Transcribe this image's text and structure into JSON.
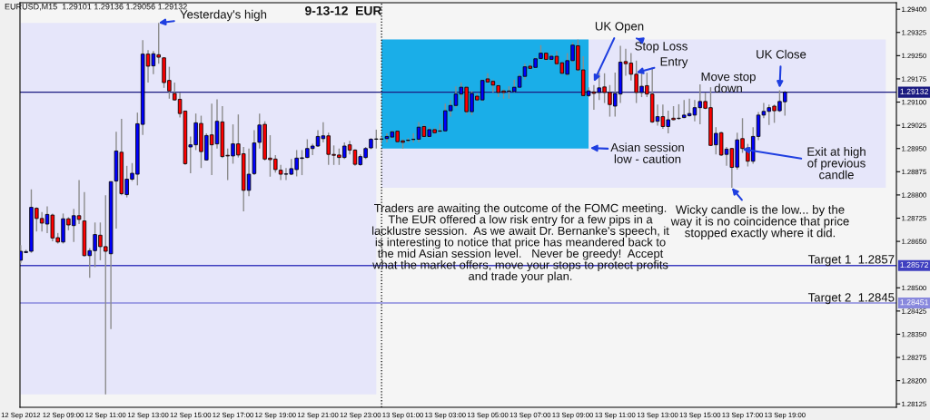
{
  "chart_data": {
    "type": "candlestick",
    "title": "9-13-12  EUR",
    "x": [
      "2012-09-12T07:00",
      "2012-09-12T07:15",
      "2012-09-12T07:30",
      "2012-09-12T07:45",
      "2012-09-12T08:00",
      "2012-09-12T08:15",
      "2012-09-12T08:30",
      "2012-09-12T08:45",
      "2012-09-12T09:00",
      "2012-09-12T09:15",
      "2012-09-12T09:30",
      "2012-09-12T09:45",
      "2012-09-12T10:00",
      "2012-09-12T10:15",
      "2012-09-12T10:30",
      "2012-09-12T10:45",
      "2012-09-12T11:00",
      "2012-09-12T11:15",
      "2012-09-12T11:30",
      "2012-09-12T11:45",
      "2012-09-12T12:00",
      "2012-09-12T12:15",
      "2012-09-12T12:30",
      "2012-09-12T12:45",
      "2012-09-12T13:00",
      "2012-09-12T13:15",
      "2012-09-12T13:30",
      "2012-09-12T13:45",
      "2012-09-12T14:00",
      "2012-09-12T14:15",
      "2012-09-12T14:30",
      "2012-09-12T14:45",
      "2012-09-12T15:00",
      "2012-09-12T15:15",
      "2012-09-12T15:30",
      "2012-09-12T15:45",
      "2012-09-12T16:00",
      "2012-09-12T16:15",
      "2012-09-12T16:30",
      "2012-09-12T16:45",
      "2012-09-12T17:00",
      "2012-09-12T17:15",
      "2012-09-12T17:30",
      "2012-09-12T17:45",
      "2012-09-12T18:00",
      "2012-09-12T18:15",
      "2012-09-12T18:30",
      "2012-09-12T18:45",
      "2012-09-12T19:00",
      "2012-09-12T19:15",
      "2012-09-12T19:30",
      "2012-09-12T19:45",
      "2012-09-12T20:00",
      "2012-09-12T20:15",
      "2012-09-12T20:30",
      "2012-09-12T20:45",
      "2012-09-12T21:00",
      "2012-09-12T21:15",
      "2012-09-12T21:30",
      "2012-09-12T21:45",
      "2012-09-12T22:00",
      "2012-09-12T22:15",
      "2012-09-12T22:30",
      "2012-09-12T22:45",
      "2012-09-12T23:00",
      "2012-09-12T23:15",
      "2012-09-12T23:30",
      "2012-09-12T23:45",
      "2012-09-13T00:00",
      "2012-09-13T00:15",
      "2012-09-13T00:30",
      "2012-09-13T00:45",
      "2012-09-13T01:00",
      "2012-09-13T01:15",
      "2012-09-13T01:30",
      "2012-09-13T01:45",
      "2012-09-13T02:00",
      "2012-09-13T02:15",
      "2012-09-13T02:30",
      "2012-09-13T02:45",
      "2012-09-13T03:00",
      "2012-09-13T03:15",
      "2012-09-13T03:30",
      "2012-09-13T03:45",
      "2012-09-13T04:00",
      "2012-09-13T04:15",
      "2012-09-13T04:30",
      "2012-09-13T04:45",
      "2012-09-13T05:00",
      "2012-09-13T05:15",
      "2012-09-13T05:30",
      "2012-09-13T05:45",
      "2012-09-13T06:00",
      "2012-09-13T06:15",
      "2012-09-13T06:30",
      "2012-09-13T06:45",
      "2012-09-13T07:00",
      "2012-09-13T07:15",
      "2012-09-13T07:30",
      "2012-09-13T07:45",
      "2012-09-13T08:00",
      "2012-09-13T08:15",
      "2012-09-13T08:30",
      "2012-09-13T08:45",
      "2012-09-13T09:00",
      "2012-09-13T09:15",
      "2012-09-13T09:30",
      "2012-09-13T09:45",
      "2012-09-13T10:00",
      "2012-09-13T10:15",
      "2012-09-13T10:30",
      "2012-09-13T10:45",
      "2012-09-13T11:00",
      "2012-09-13T11:15",
      "2012-09-13T11:30",
      "2012-09-13T11:45",
      "2012-09-13T12:00",
      "2012-09-13T12:15",
      "2012-09-13T12:30",
      "2012-09-13T12:45",
      "2012-09-13T13:00",
      "2012-09-13T13:15",
      "2012-09-13T13:30",
      "2012-09-13T13:45",
      "2012-09-13T14:00",
      "2012-09-13T14:15",
      "2012-09-13T14:30",
      "2012-09-13T14:45",
      "2012-09-13T15:00",
      "2012-09-13T15:15",
      "2012-09-13T15:30",
      "2012-09-13T15:45",
      "2012-09-13T16:00",
      "2012-09-13T16:15",
      "2012-09-13T16:30",
      "2012-09-13T16:45",
      "2012-09-13T17:00",
      "2012-09-13T17:15",
      "2012-09-13T17:30",
      "2012-09-13T17:45",
      "2012-09-13T18:00",
      "2012-09-13T18:15",
      "2012-09-13T18:30",
      "2012-09-13T18:45",
      "2012-09-13T19:00"
    ],
    "ohlc": [
      [
        1.28589,
        1.28638,
        1.28579,
        1.28618
      ],
      [
        1.28614,
        1.28623,
        1.28612,
        1.28617
      ],
      [
        1.28618,
        1.28818,
        1.28613,
        1.2876
      ],
      [
        1.28757,
        1.2876,
        1.28682,
        1.28724
      ],
      [
        1.28724,
        1.28745,
        1.28682,
        1.28709
      ],
      [
        1.28706,
        1.28763,
        1.28677,
        1.28737
      ],
      [
        1.28735,
        1.2874,
        1.2865,
        1.28661
      ],
      [
        1.28662,
        1.28677,
        1.28643,
        1.28648
      ],
      [
        1.28648,
        1.2874,
        1.28643,
        1.28723
      ],
      [
        1.28723,
        1.28728,
        1.28686,
        1.28703
      ],
      [
        1.28701,
        1.28755,
        1.28648,
        1.28733
      ],
      [
        1.28733,
        1.28848,
        1.28706,
        1.28721
      ],
      [
        1.28716,
        1.28809,
        1.28601,
        1.28604
      ],
      [
        1.28604,
        1.28628,
        1.28532,
        1.2862
      ],
      [
        1.2862,
        1.28711,
        1.28567,
        1.28672
      ],
      [
        1.2867,
        1.28711,
        1.28589,
        1.28633
      ],
      [
        1.28633,
        1.28799,
        1.28156,
        1.28618
      ],
      [
        1.2861,
        1.28843,
        1.28367,
        1.28843
      ],
      [
        1.28845,
        1.29004,
        1.28691,
        1.28942
      ],
      [
        1.28938,
        1.29046,
        1.28799,
        1.28804
      ],
      [
        1.28801,
        1.28894,
        1.28792,
        1.28851
      ],
      [
        1.28851,
        1.28903,
        1.28845,
        1.2887
      ],
      [
        1.28867,
        1.29066,
        1.28831,
        1.2903
      ],
      [
        1.29028,
        1.293,
        1.28994,
        1.29255
      ],
      [
        1.29255,
        1.29268,
        1.29163,
        1.29216
      ],
      [
        1.29217,
        1.29265,
        1.2919,
        1.29256
      ],
      [
        1.29253,
        1.29356,
        1.29224,
        1.29245
      ],
      [
        1.29243,
        1.29245,
        1.29146,
        1.29163
      ],
      [
        1.2917,
        1.29214,
        1.29111,
        1.29136
      ],
      [
        1.29128,
        1.29163,
        1.29105,
        1.29107
      ],
      [
        1.29109,
        1.29131,
        1.2905,
        1.29063
      ],
      [
        1.29071,
        1.29072,
        1.28897,
        1.28901
      ],
      [
        1.28955,
        1.28989,
        1.2887,
        1.28962
      ],
      [
        1.28962,
        1.29063,
        1.28945,
        1.29033
      ],
      [
        1.29031,
        1.29056,
        1.28887,
        1.2894
      ],
      [
        1.28913,
        1.28999,
        1.28911,
        1.28992
      ],
      [
        1.28994,
        1.29095,
        1.28864,
        1.28962
      ],
      [
        1.28965,
        1.29109,
        1.2895,
        1.29038
      ],
      [
        1.29036,
        1.29087,
        1.28919,
        1.28924
      ],
      [
        1.28928,
        1.2895,
        1.28848,
        1.28926
      ],
      [
        1.28926,
        1.29028,
        1.28901,
        1.28965
      ],
      [
        1.28965,
        1.2906,
        1.28921,
        1.28929
      ],
      [
        1.28933,
        1.28955,
        1.28747,
        1.28815
      ],
      [
        1.28815,
        1.2895,
        1.28796,
        1.28867
      ],
      [
        1.28869,
        1.29009,
        1.28864,
        1.28968
      ],
      [
        1.2897,
        1.29063,
        1.2895,
        1.29026
      ],
      [
        1.29028,
        1.29038,
        1.28911,
        1.28916
      ],
      [
        1.28919,
        1.28993,
        1.28859,
        1.28914
      ],
      [
        1.28916,
        1.28929,
        1.28872,
        1.28882
      ],
      [
        1.2888,
        1.28897,
        1.28848,
        1.28867
      ],
      [
        1.28867,
        1.28887,
        1.28848,
        1.28868
      ],
      [
        1.28867,
        1.28916,
        1.28864,
        1.28885
      ],
      [
        1.28882,
        1.28945,
        1.2886,
        1.28919
      ],
      [
        1.28918,
        1.28945,
        1.28864,
        1.2892
      ],
      [
        1.28921,
        1.2898,
        1.28919,
        1.2895
      ],
      [
        1.2895,
        1.28965,
        1.28929,
        1.28958
      ],
      [
        1.28958,
        1.29009,
        1.28955,
        1.28989
      ],
      [
        1.28982,
        1.29035,
        1.2897,
        1.28991
      ],
      [
        1.28991,
        1.29001,
        1.28897,
        1.28931
      ],
      [
        1.28931,
        1.2896,
        1.28897,
        1.28928
      ],
      [
        1.28929,
        1.2895,
        1.28897,
        1.28921
      ],
      [
        1.28921,
        1.2897,
        1.28916,
        1.28958
      ],
      [
        1.28962,
        1.28975,
        1.28931,
        1.28945
      ],
      [
        1.28945,
        1.28948,
        1.28894,
        1.28899
      ],
      [
        1.28898,
        1.28931,
        1.28894,
        1.28924
      ],
      [
        1.28921,
        1.28955,
        1.28916,
        1.2895
      ],
      [
        1.28952,
        1.28984,
        1.28948,
        1.2898
      ],
      [
        1.2898,
        1.29011,
        1.2895,
        1.28981
      ],
      [
        1.28981,
        1.28989,
        1.2897,
        1.2898
      ],
      [
        1.28982,
        1.28999,
        1.2897,
        1.28989
      ],
      [
        1.28987,
        1.29007,
        1.28982,
        1.29004
      ],
      [
        1.29006,
        1.29007,
        1.2897,
        1.28972
      ],
      [
        1.28975,
        1.2898,
        1.2895,
        1.2897
      ],
      [
        1.28976,
        1.28984,
        1.2897,
        1.28977
      ],
      [
        1.28979,
        1.28999,
        1.2897,
        1.2898
      ],
      [
        1.2898,
        1.29036,
        1.2897,
        1.29019
      ],
      [
        1.29021,
        1.29028,
        1.28984,
        1.28989
      ],
      [
        1.28989,
        1.29019,
        1.28984,
        1.29011
      ],
      [
        1.29011,
        1.29017,
        1.28997,
        1.29001
      ],
      [
        1.29006,
        1.2903,
        1.29001,
        1.29007
      ],
      [
        1.29007,
        1.29095,
        1.29004,
        1.29072
      ],
      [
        1.29072,
        1.29107,
        1.29053,
        1.29089
      ],
      [
        1.29089,
        1.29151,
        1.29082,
        1.29126
      ],
      [
        1.29126,
        1.29163,
        1.29111,
        1.29148
      ],
      [
        1.29148,
        1.29151,
        1.2906,
        1.29069
      ],
      [
        1.29069,
        1.29136,
        1.29058,
        1.29128
      ],
      [
        1.29119,
        1.29128,
        1.29102,
        1.29107
      ],
      [
        1.29107,
        1.29173,
        1.29102,
        1.2917
      ],
      [
        1.29175,
        1.29193,
        1.2916,
        1.29165
      ],
      [
        1.29167,
        1.29173,
        1.29131,
        1.29155
      ],
      [
        1.29153,
        1.29157,
        1.29116,
        1.29131
      ],
      [
        1.29136,
        1.29141,
        1.29111,
        1.29131
      ],
      [
        1.29135,
        1.29151,
        1.29111,
        1.29136
      ],
      [
        1.29134,
        1.29173,
        1.29131,
        1.29148
      ],
      [
        1.29148,
        1.2919,
        1.29146,
        1.29183
      ],
      [
        1.29183,
        1.29224,
        1.29173,
        1.29214
      ],
      [
        1.29216,
        1.29224,
        1.29204,
        1.29209
      ],
      [
        1.29212,
        1.29245,
        1.29209,
        1.2924
      ],
      [
        1.29241,
        1.29284,
        1.29238,
        1.29258
      ],
      [
        1.29258,
        1.29261,
        1.29234,
        1.29238
      ],
      [
        1.29238,
        1.29253,
        1.29234,
        1.29248
      ],
      [
        1.29248,
        1.29265,
        1.29219,
        1.29224
      ],
      [
        1.29227,
        1.29229,
        1.2919,
        1.29193
      ],
      [
        1.2919,
        1.29258,
        1.29185,
        1.29234
      ],
      [
        1.29234,
        1.29292,
        1.29229,
        1.29284
      ],
      [
        1.29282,
        1.29302,
        1.29199,
        1.29204
      ],
      [
        1.29204,
        1.29248,
        1.29118,
        1.29121
      ],
      [
        1.29121,
        1.29148,
        1.29116,
        1.29136
      ],
      [
        1.29133,
        1.29155,
        1.29075,
        1.29128
      ],
      [
        1.29131,
        1.29194,
        1.29107,
        1.29146
      ],
      [
        1.29149,
        1.29193,
        1.29097,
        1.29131
      ],
      [
        1.29131,
        1.29155,
        1.29053,
        1.29092
      ],
      [
        1.29087,
        1.29195,
        1.29053,
        1.29128
      ],
      [
        1.29126,
        1.29282,
        1.29097,
        1.29229
      ],
      [
        1.29231,
        1.29272,
        1.29185,
        1.29224
      ],
      [
        1.29226,
        1.29258,
        1.2917,
        1.2919
      ],
      [
        1.2919,
        1.29234,
        1.29097,
        1.29131
      ],
      [
        1.29131,
        1.29199,
        1.29116,
        1.29151
      ],
      [
        1.29153,
        1.29195,
        1.29116,
        1.29126
      ],
      [
        1.29126,
        1.29212,
        1.29033,
        1.29036
      ],
      [
        1.29038,
        1.29092,
        1.29024,
        1.29053
      ],
      [
        1.29053,
        1.29092,
        1.29014,
        1.29021
      ],
      [
        1.29021,
        1.29072,
        1.28999,
        1.29043
      ],
      [
        1.29048,
        1.29087,
        1.29041,
        1.29043
      ],
      [
        1.29047,
        1.29093,
        1.29043,
        1.29048
      ],
      [
        1.2905,
        1.29107,
        1.29048,
        1.29058
      ],
      [
        1.29056,
        1.29111,
        1.29053,
        1.29063
      ],
      [
        1.29058,
        1.29107,
        1.29038,
        1.29082
      ],
      [
        1.29082,
        1.29157,
        1.29028,
        1.29102
      ],
      [
        1.29102,
        1.29131,
        1.29077,
        1.2908
      ],
      [
        1.29082,
        1.29148,
        1.28958,
        1.2896
      ],
      [
        1.28962,
        1.29019,
        1.28931,
        1.28999
      ],
      [
        1.29001,
        1.29004,
        1.28926,
        1.28929
      ],
      [
        1.28931,
        1.28955,
        1.28894,
        1.28948
      ],
      [
        1.2895,
        1.28952,
        1.28823,
        1.28889
      ],
      [
        1.2889,
        1.29001,
        1.28882,
        1.28978
      ],
      [
        1.28982,
        1.29048,
        1.28936,
        1.2895
      ],
      [
        1.28952,
        1.28965,
        1.28892,
        1.28909
      ],
      [
        1.28909,
        1.29019,
        1.28901,
        1.28989
      ],
      [
        1.28989,
        1.29068,
        1.28977,
        1.29058
      ],
      [
        1.29058,
        1.29097,
        1.29048,
        1.2907
      ],
      [
        1.2907,
        1.29092,
        1.29026,
        1.29082
      ],
      [
        1.29087,
        1.29092,
        1.29033,
        1.29072
      ],
      [
        1.29072,
        1.29138,
        1.29068,
        1.29102
      ],
      [
        1.29101,
        1.29136,
        1.29056,
        1.29132
      ]
    ],
    "xlim": [
      "2012-09-12T06:58",
      "2012-09-14T00:15"
    ],
    "ylim": [
      1.28114,
      1.29421
    ],
    "xticks": [
      {
        "value": "2012-09-12T07:00",
        "label": "12 Sep 2012"
      },
      {
        "value": "2012-09-12T09:00",
        "label": "12 Sep 09:00"
      },
      {
        "value": "2012-09-12T11:00",
        "label": "12 Sep 11:00"
      },
      {
        "value": "2012-09-12T13:00",
        "label": "12 Sep 13:00"
      },
      {
        "value": "2012-09-12T15:00",
        "label": "12 Sep 15:00"
      },
      {
        "value": "2012-09-12T17:00",
        "label": "12 Sep 17:00"
      },
      {
        "value": "2012-09-12T19:00",
        "label": "12 Sep 19:00"
      },
      {
        "value": "2012-09-12T21:00",
        "label": "12 Sep 21:00"
      },
      {
        "value": "2012-09-12T23:00",
        "label": "12 Sep 23:00"
      },
      {
        "value": "2012-09-13T01:00",
        "label": "13 Sep 01:00"
      },
      {
        "value": "2012-09-13T03:00",
        "label": "13 Sep 03:00"
      },
      {
        "value": "2012-09-13T05:00",
        "label": "13 Sep 05:00"
      },
      {
        "value": "2012-09-13T07:00",
        "label": "13 Sep 07:00"
      },
      {
        "value": "2012-09-13T09:00",
        "label": "13 Sep 09:00"
      },
      {
        "value": "2012-09-13T11:00",
        "label": "13 Sep 11:00"
      },
      {
        "value": "2012-09-13T13:00",
        "label": "13 Sep 13:00"
      },
      {
        "value": "2012-09-13T15:00",
        "label": "13 Sep 15:00"
      },
      {
        "value": "2012-09-13T17:00",
        "label": "13 Sep 17:00"
      },
      {
        "value": "2012-09-13T19:00",
        "label": "13 Sep 19:00"
      }
    ],
    "yticks": [
      {
        "value": 1.294,
        "label": "1.29400"
      },
      {
        "value": 1.29325,
        "label": "1.29325"
      },
      {
        "value": 1.2925,
        "label": "1.29250"
      },
      {
        "value": 1.29175,
        "label": "1.29175"
      },
      {
        "value": 1.291,
        "label": "1.29100"
      },
      {
        "value": 1.29025,
        "label": "1.29025"
      },
      {
        "value": 1.2895,
        "label": "1.28950"
      },
      {
        "value": 1.28875,
        "label": "1.28875"
      },
      {
        "value": 1.288,
        "label": "1.28800"
      },
      {
        "value": 1.28725,
        "label": "1.28725"
      },
      {
        "value": 1.2865,
        "label": "1.28650"
      },
      {
        "value": 1.285,
        "label": "1.28500"
      },
      {
        "value": 1.28425,
        "label": "1.28425"
      },
      {
        "value": 1.2835,
        "label": "1.28350"
      },
      {
        "value": 1.28275,
        "label": "1.28275"
      },
      {
        "value": 1.282,
        "label": "1.28200"
      },
      {
        "value": 1.28125,
        "label": "1.28125"
      }
    ],
    "bands": [
      {
        "axis": "x",
        "from": "2012-09-12T07:00",
        "to": "2012-09-12T23:45",
        "color": "#e6e6fa"
      },
      {
        "axis": "x",
        "from": "2012-09-13T00:00",
        "to": "2012-09-13T23:45",
        "color": "#e6e6fa"
      },
      {
        "axis": "x",
        "from": "2012-09-13T00:00",
        "to": "2012-09-13T09:45",
        "color": "#1aaee8"
      }
    ],
    "ref_lines": [
      {
        "axis": "x",
        "value": "2012-09-13T00:00",
        "color": "#000000",
        "line_style": "dotted"
      },
      {
        "axis": "y",
        "value": 1.29132,
        "label": "1.29132",
        "color": "#1a1a80",
        "line_style": "solid"
      },
      {
        "axis": "y",
        "value": 1.28572,
        "label": "1.28572",
        "color": "#4040c0",
        "line_style": "solid"
      },
      {
        "axis": "y",
        "value": 1.28451,
        "label": "1.28451",
        "color": "#8888dd",
        "line_style": "solid"
      }
    ],
    "annotations": [
      "EURUSD,M15  1.29101 1.29136 1.29056 1.29132",
      {
        "text": "Yesterday's high",
        "x": "2012-09-12T13:30",
        "y": 1.29356
      },
      {
        "text": "UK Open",
        "x": "2012-09-13T10:00",
        "y": 1.29166
      },
      {
        "text": "Stop Loss",
        "x": "2012-09-13T12:00",
        "y": 1.29306
      },
      {
        "text": "Entry",
        "x": "2012-09-13T12:00",
        "y": 1.29195
      },
      "Move stop\ndown",
      {
        "text": "UK Close",
        "x": "2012-09-13T18:45",
        "y": 1.29146
      },
      "Asian session\nlow - caution",
      {
        "text": "Exit at high\nof previous\ncandle",
        "x": "2012-09-13T17:00",
        "y": 1.28948
      },
      {
        "text": "Wicky candle is the low... by the\nway it is no coincidence that price\nstopped exactly where it did.",
        "x": "2012-09-13T16:30",
        "y": 1.28823
      },
      "Traders are awaiting the outcome of the FOMC meeting.\nThe EUR offered a low risk entry for a few pips in a\nlacklustre session.  As we await Dr. Bernanke's speech, it\nis interesting to notice that price has meandered back to\nthe mid Asian session level.   Never be greedy!  Accept\nwhat the market offers, move your stops to protect profits\nand trade your plan.",
      "Target 1  1.2857",
      "Target 2  1.2845"
    ]
  }
}
